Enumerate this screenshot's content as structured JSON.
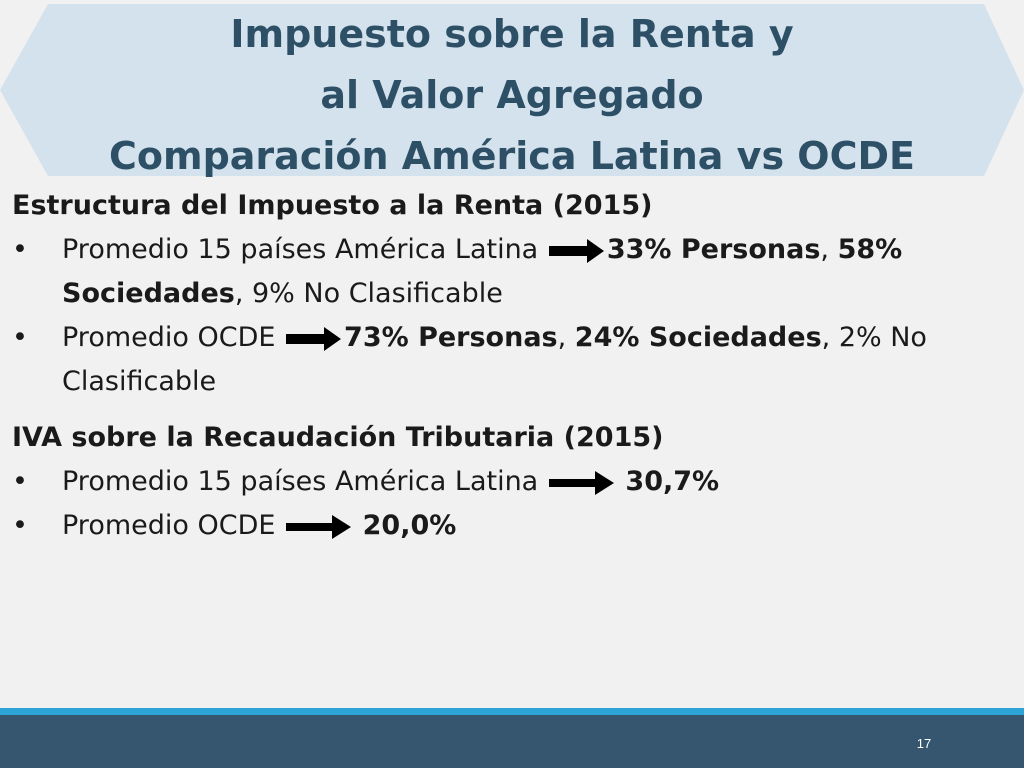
{
  "title": {
    "line1": "Impuesto sobre la Renta y",
    "line2": "al Valor Agregado",
    "line3": "Comparación América Latina vs OCDE"
  },
  "colors": {
    "banner_fill": "#d3e2ec",
    "title_text": "#2e5067",
    "footer_bar": "#35566e",
    "footer_stripe": "#2ea3d8",
    "background": "#f1f1f1"
  },
  "section1": {
    "heading": "Estructura del Impuesto a la Renta (2015)",
    "bullet1": {
      "marker": "•",
      "lead": "Promedio 15 países América Latina",
      "arrow_icon": "right-arrow-icon",
      "b1": "33% Personas",
      "t1": ", ",
      "b2": "58% Sociedades",
      "t2": ", 9% No Clasificable"
    },
    "bullet2": {
      "marker": "•",
      "lead": "Promedio OCDE",
      "arrow_icon": "right-arrow-icon",
      "b1": "73% Personas",
      "t1": ", ",
      "b2": "24% Sociedades",
      "t2": ", 2% No Clasificable"
    }
  },
  "section2": {
    "heading": "IVA sobre la Recaudación Tributaria (2015)",
    "bullet1": {
      "marker": "•",
      "lead": "Promedio 15 países América Latina",
      "arrow_icon": "right-arrow-icon",
      "value": "30,7%"
    },
    "bullet2": {
      "marker": "•",
      "lead": "Promedio OCDE",
      "arrow_icon": "right-arrow-icon",
      "value": "20,0%"
    }
  },
  "footer": {
    "page_number": "17"
  }
}
